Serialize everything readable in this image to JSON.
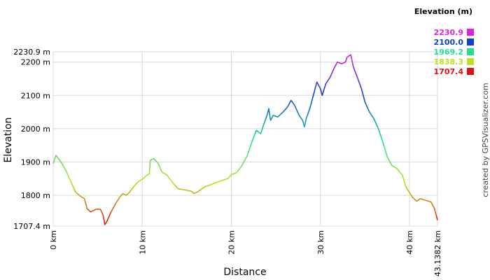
{
  "chart_data": {
    "type": "line",
    "x_label": "Distance",
    "y_label": "Elevation",
    "credit": "created by GPSVisualizer.com",
    "legend_title": "Elevation (m)",
    "color_scale": {
      "values": [
        2230.9,
        2100,
        1969.2,
        1838.3,
        1707.4
      ],
      "value_labels": [
        "2230.9",
        "2100.0",
        "1969.2",
        "1838.3",
        "1707.4"
      ],
      "colors": [
        "#e020e0",
        "#1040d0",
        "#20e090",
        "#c0e020",
        "#e01010"
      ]
    },
    "xlim": [
      0,
      43.1382
    ],
    "ylim": [
      1707.4,
      2230.9
    ],
    "xticks": [
      {
        "value": 0,
        "label": "0 km"
      },
      {
        "value": 10,
        "label": "10 km"
      },
      {
        "value": 20,
        "label": "20 km"
      },
      {
        "value": 30,
        "label": "30 km"
      },
      {
        "value": 40,
        "label": "40 km"
      },
      {
        "value": 43.1382,
        "label": "43.1382 km"
      }
    ],
    "yticks": [
      {
        "value": 1707.4,
        "label": "1707.4 m"
      },
      {
        "value": 1800,
        "label": "1800 m"
      },
      {
        "value": 1900,
        "label": "1900 m"
      },
      {
        "value": 2000,
        "label": "2000 m"
      },
      {
        "value": 2100,
        "label": "2100 m"
      },
      {
        "value": 2200,
        "label": "2200 m"
      },
      {
        "value": 2230.9,
        "label": "2230.9 m"
      }
    ],
    "grid": true,
    "x": [
      0,
      0.3,
      1,
      1.5,
      2,
      2.5,
      3,
      3.5,
      3.8,
      4.2,
      4.8,
      5.3,
      5.6,
      5.8,
      6,
      6.5,
      7,
      7.5,
      7.8,
      8.2,
      8.6,
      9,
      9.5,
      10,
      10.5,
      10.8,
      10.9,
      11.3,
      11.8,
      12.2,
      12.8,
      13.5,
      14,
      15,
      15.5,
      15.8,
      16.2,
      17,
      18,
      19,
      19.6,
      20,
      20.6,
      21.2,
      21.8,
      22.3,
      22.8,
      23.3,
      23.6,
      24,
      24.2,
      24.4,
      24.7,
      25.2,
      25.8,
      26.3,
      26.7,
      27.1,
      27.6,
      28,
      28.2,
      28.4,
      28.8,
      29.2,
      29.6,
      30,
      30.2,
      30.6,
      31.1,
      31.5,
      31.9,
      32.4,
      32.8,
      33,
      33.4,
      33.7,
      34.2,
      34.6,
      35,
      35.5,
      36,
      36.5,
      37,
      37.5,
      38,
      38.6,
      39.2,
      39.6,
      40.3,
      40.8,
      41.2,
      41.8,
      42.4,
      42.8,
      43.1382
    ],
    "series": [
      {
        "values": [
          1895,
          1920,
          1895,
          1870,
          1840,
          1810,
          1798,
          1790,
          1760,
          1750,
          1758,
          1758,
          1740,
          1712,
          1720,
          1750,
          1775,
          1795,
          1805,
          1800,
          1810,
          1825,
          1840,
          1848,
          1860,
          1865,
          1905,
          1910,
          1895,
          1870,
          1860,
          1835,
          1820,
          1815,
          1812,
          1805,
          1810,
          1825,
          1835,
          1845,
          1850,
          1862,
          1868,
          1890,
          1920,
          1960,
          1995,
          1985,
          2010,
          2040,
          2060,
          2025,
          2040,
          2035,
          2050,
          2065,
          2085,
          2070,
          2040,
          2025,
          2005,
          2030,
          2060,
          2100,
          2140,
          2120,
          2100,
          2135,
          2155,
          2180,
          2200,
          2195,
          2200,
          2215,
          2222,
          2185,
          2150,
          2120,
          2080,
          2050,
          2030,
          2000,
          1960,
          1915,
          1890,
          1880,
          1860,
          1825,
          1795,
          1782,
          1790,
          1785,
          1780,
          1760,
          1725
        ]
      }
    ]
  }
}
